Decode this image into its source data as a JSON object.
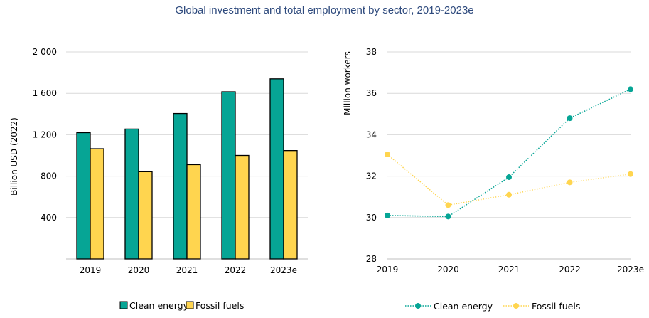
{
  "title": "Global investment and total employment by sector, 2019-2023e",
  "colors": {
    "clean": "#06a595",
    "fossil": "#ffd54f",
    "grid": "#d9d9d9",
    "axis": "#bfbfbf",
    "title": "#2e4a7d"
  },
  "chart_data": [
    {
      "type": "bar",
      "title": "",
      "xlabel": "",
      "ylabel": "Billion USD (2022)",
      "categories": [
        "2019",
        "2020",
        "2021",
        "2022",
        "2023e"
      ],
      "ylim": [
        0,
        2000
      ],
      "yticks": [
        0,
        400,
        800,
        1200,
        1600,
        2000
      ],
      "ytick_labels": [
        "",
        "400",
        "800",
        "1 200",
        "1 600",
        "2 000"
      ],
      "grid": true,
      "legend_position": "bottom",
      "series": [
        {
          "name": "Clean energy",
          "color": "#06a595",
          "values": [
            1220,
            1255,
            1405,
            1615,
            1740
          ]
        },
        {
          "name": "Fossil fuels",
          "color": "#ffd54f",
          "values": [
            1065,
            843,
            911,
            1000,
            1047
          ]
        }
      ]
    },
    {
      "type": "line",
      "title": "",
      "xlabel": "",
      "ylabel": "Million workers",
      "categories": [
        "2019",
        "2020",
        "2021",
        "2022",
        "2023e"
      ],
      "ylim": [
        28,
        38
      ],
      "yticks": [
        28,
        30,
        32,
        34,
        36,
        38
      ],
      "ytick_labels": [
        "28",
        "30",
        "32",
        "34",
        "36",
        "38"
      ],
      "grid": true,
      "legend_position": "bottom",
      "series": [
        {
          "name": "Clean energy",
          "color": "#06a595",
          "values": [
            30.1,
            30.05,
            31.95,
            34.8,
            36.2
          ]
        },
        {
          "name": "Fossil fuels",
          "color": "#ffd54f",
          "values": [
            33.05,
            30.6,
            31.1,
            31.7,
            32.1
          ]
        }
      ]
    }
  ]
}
